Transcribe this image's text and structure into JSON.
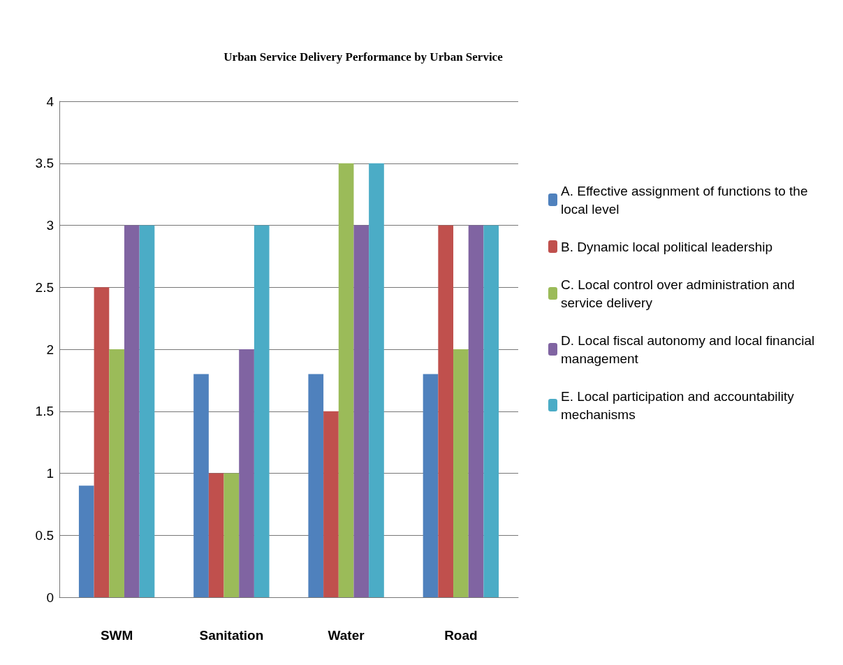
{
  "chart_data": {
    "type": "bar",
    "title": "Urban Service Delivery Performance by Urban Service",
    "categories": [
      "SWM",
      "Sanitation",
      "Water",
      "Road"
    ],
    "series": [
      {
        "name": "A. Effective assignment of functions to the local level",
        "color": "#4f81bd",
        "values": [
          0.9,
          1.8,
          1.8,
          1.8
        ]
      },
      {
        "name": "B. Dynamic local political leadership",
        "color": "#c0504d",
        "values": [
          2.5,
          1,
          1.5,
          3
        ]
      },
      {
        "name": "C. Local control over administration and service delivery",
        "color": "#9bbb59",
        "values": [
          2,
          1,
          3.5,
          2
        ]
      },
      {
        "name": "D. Local fiscal autonomy and local financial management",
        "color": "#8064a2",
        "values": [
          3,
          2,
          3,
          3
        ]
      },
      {
        "name": "E. Local participation and accountability mechanisms",
        "color": "#4bacc6",
        "values": [
          3,
          3,
          3.5,
          3
        ]
      }
    ],
    "ylim": [
      0,
      4
    ],
    "yticks": [
      0,
      0.5,
      1,
      1.5,
      2,
      2.5,
      3,
      3.5,
      4
    ],
    "grid": "y",
    "legend": "right"
  }
}
